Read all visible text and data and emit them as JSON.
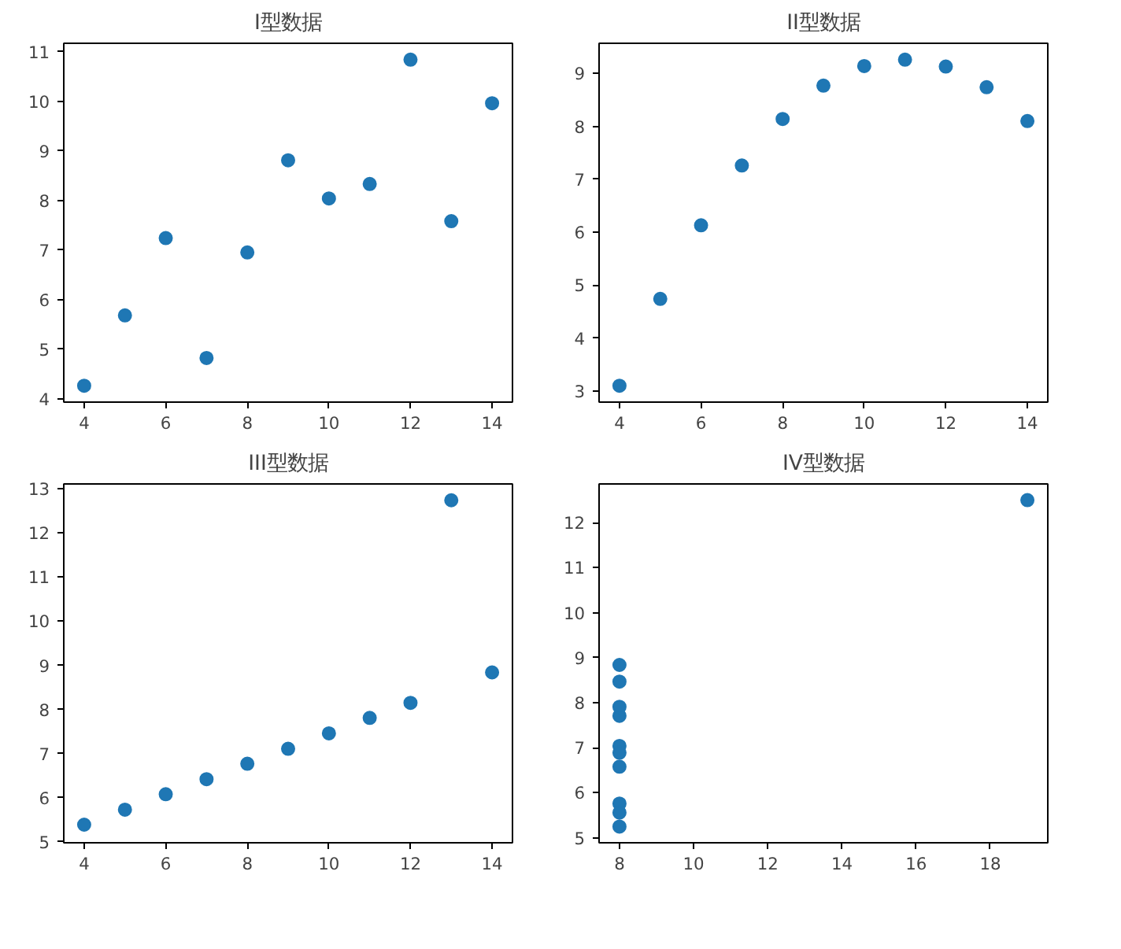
{
  "chart_data": [
    {
      "type": "scatter",
      "title": "I型数据",
      "marker": "circle",
      "grid": false,
      "xlim": [
        3.5,
        14.5
      ],
      "ylim": [
        3.93,
        11.17
      ],
      "xticks": [
        4,
        6,
        8,
        10,
        12,
        14
      ],
      "yticks": [
        4,
        5,
        6,
        7,
        8,
        9,
        10,
        11
      ],
      "x": [
        10,
        8,
        13,
        9,
        11,
        14,
        6,
        4,
        12,
        7,
        5
      ],
      "series": [
        {
          "color": "#1f77b4",
          "values": [
            8.04,
            6.95,
            7.58,
            8.81,
            8.33,
            9.96,
            7.24,
            4.26,
            10.84,
            4.82,
            5.68
          ]
        }
      ]
    },
    {
      "type": "scatter",
      "title": "II型数据",
      "marker": "circle",
      "grid": false,
      "xlim": [
        3.5,
        14.5
      ],
      "ylim": [
        2.79,
        9.57
      ],
      "xticks": [
        4,
        6,
        8,
        10,
        12,
        14
      ],
      "yticks": [
        3,
        4,
        5,
        6,
        7,
        8,
        9
      ],
      "x": [
        10,
        8,
        13,
        9,
        11,
        14,
        6,
        4,
        12,
        7,
        5
      ],
      "series": [
        {
          "color": "#1f77b4",
          "values": [
            9.14,
            8.14,
            8.74,
            8.77,
            9.26,
            8.1,
            6.13,
            3.1,
            9.13,
            7.26,
            4.74
          ]
        }
      ]
    },
    {
      "type": "scatter",
      "title": "III型数据",
      "marker": "circle",
      "grid": false,
      "xlim": [
        3.5,
        14.5
      ],
      "ylim": [
        4.98,
        13.11
      ],
      "xticks": [
        4,
        6,
        8,
        10,
        12,
        14
      ],
      "yticks": [
        5,
        6,
        7,
        8,
        9,
        10,
        11,
        12,
        13
      ],
      "x": [
        10,
        8,
        13,
        9,
        11,
        14,
        6,
        4,
        12,
        7,
        5
      ],
      "series": [
        {
          "color": "#1f77b4",
          "values": [
            7.46,
            6.77,
            12.74,
            7.11,
            7.81,
            8.84,
            6.08,
            5.39,
            8.15,
            6.42,
            5.73
          ]
        }
      ]
    },
    {
      "type": "scatter",
      "title": "IV型数据",
      "marker": "circle",
      "grid": false,
      "xlim": [
        7.45,
        19.55
      ],
      "ylim": [
        4.89,
        12.86
      ],
      "xticks": [
        8,
        10,
        12,
        14,
        16,
        18
      ],
      "yticks": [
        5,
        6,
        7,
        8,
        9,
        10,
        11,
        12
      ],
      "x": [
        8,
        8,
        8,
        8,
        8,
        8,
        8,
        19,
        8,
        8,
        8
      ],
      "series": [
        {
          "color": "#1f77b4",
          "values": [
            6.58,
            5.76,
            7.71,
            8.84,
            8.47,
            7.04,
            5.25,
            12.5,
            5.56,
            7.91,
            6.89
          ]
        }
      ]
    }
  ]
}
